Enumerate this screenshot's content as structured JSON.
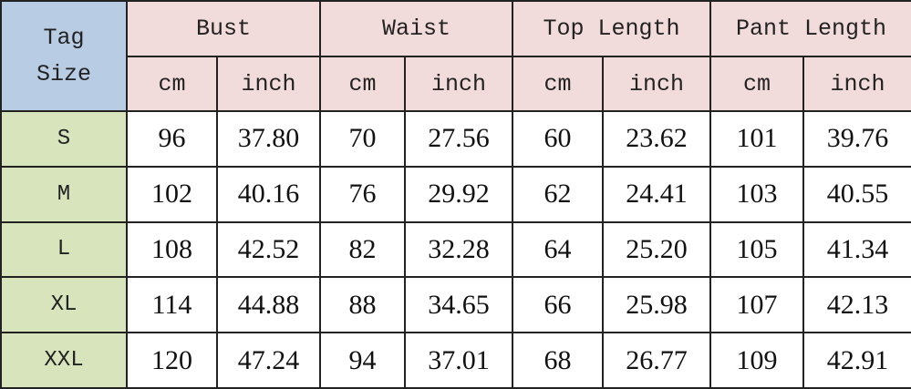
{
  "header": {
    "tag_size": "Tag Size",
    "groups": [
      "Bust",
      "Waist",
      "Top Length",
      "Pant Length"
    ],
    "units": [
      "cm",
      "inch"
    ]
  },
  "colors": {
    "tag_header": "#b8cce4",
    "group_header": "#f2dcdb",
    "size_column": "#d8e4bc"
  },
  "rows": [
    {
      "size": "S",
      "values": [
        "96",
        "37.80",
        "70",
        "27.56",
        "60",
        "23.62",
        "101",
        "39.76"
      ]
    },
    {
      "size": "M",
      "values": [
        "102",
        "40.16",
        "76",
        "29.92",
        "62",
        "24.41",
        "103",
        "40.55"
      ]
    },
    {
      "size": "L",
      "values": [
        "108",
        "42.52",
        "82",
        "32.28",
        "64",
        "25.20",
        "105",
        "41.34"
      ]
    },
    {
      "size": "XL",
      "values": [
        "114",
        "44.88",
        "88",
        "34.65",
        "66",
        "25.98",
        "107",
        "42.13"
      ]
    },
    {
      "size": "XXL",
      "values": [
        "120",
        "47.24",
        "94",
        "37.01",
        "68",
        "26.77",
        "109",
        "42.91"
      ]
    }
  ]
}
